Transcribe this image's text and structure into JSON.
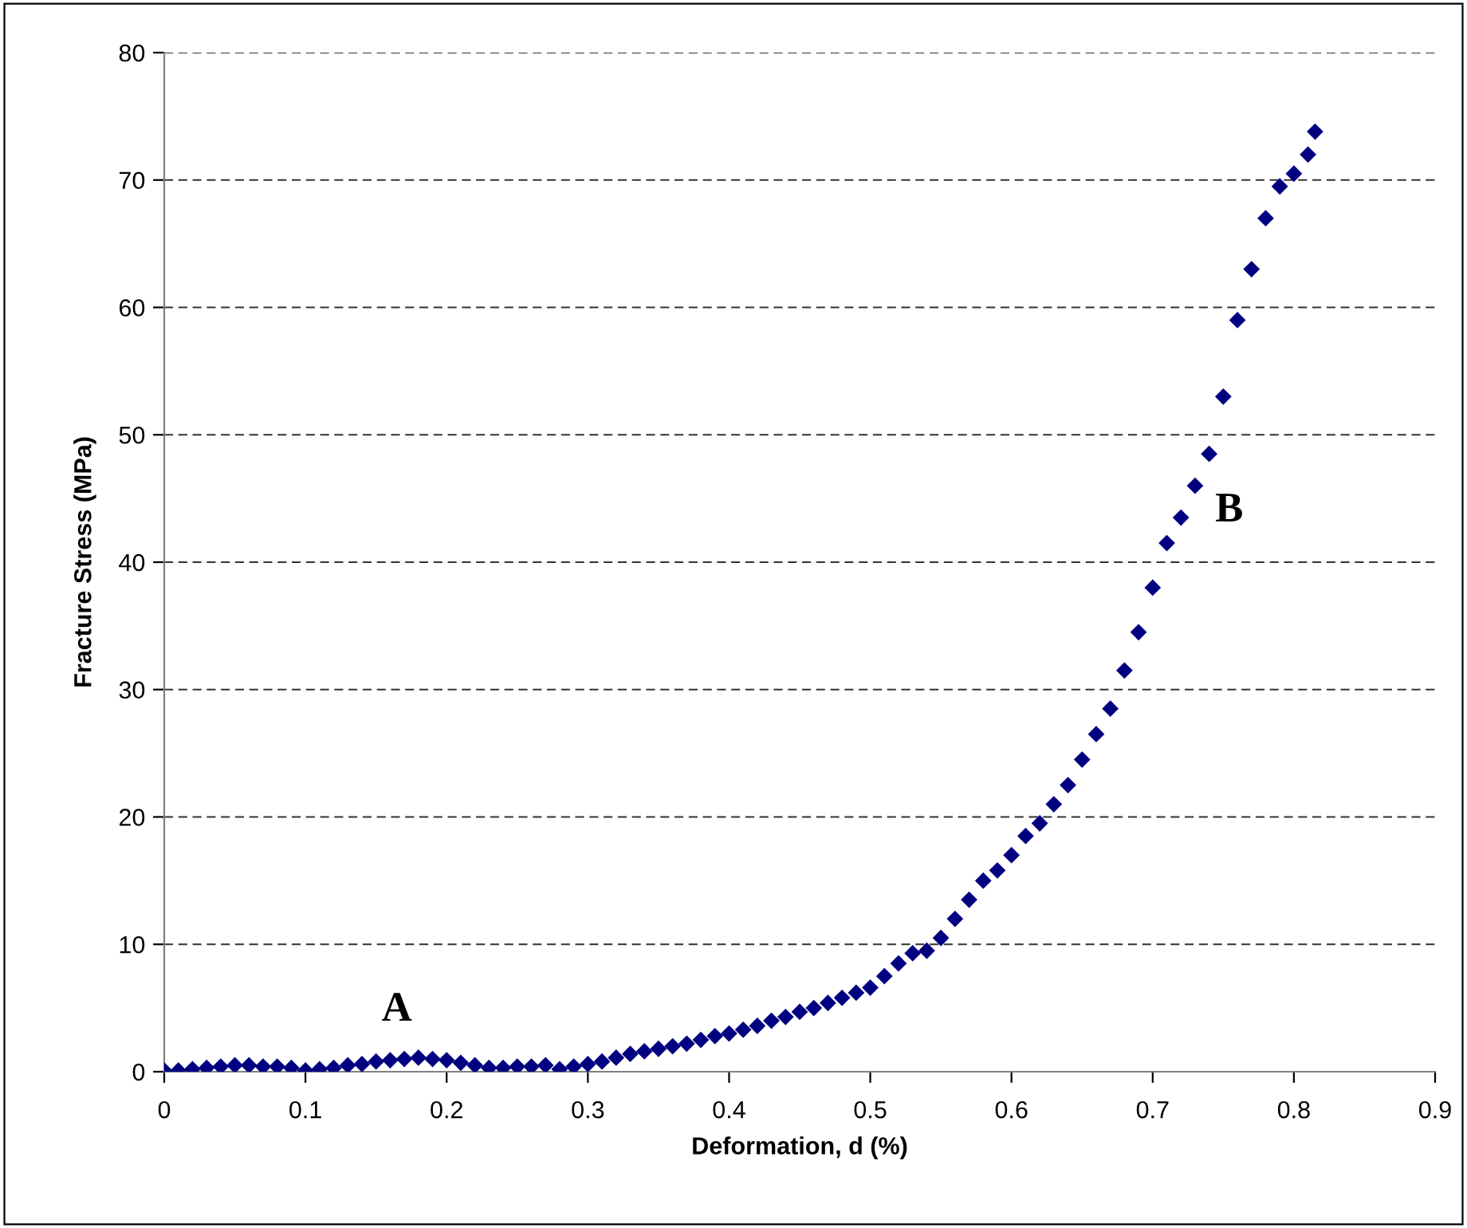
{
  "chart_data": {
    "type": "scatter",
    "xlabel": "Deformation, d (%)",
    "ylabel": "Fracture Stress (MPa)",
    "xlim": [
      0,
      0.9
    ],
    "xticks": [
      0,
      0.1,
      0.2,
      0.3,
      0.4,
      0.5,
      0.6,
      0.7,
      0.8,
      0.9
    ],
    "ylim": [
      0,
      80
    ],
    "yticks": [
      0,
      10,
      20,
      30,
      40,
      50,
      60,
      70,
      80
    ],
    "grid": "y",
    "marker": "diamond",
    "annotations": [
      "A",
      "B"
    ],
    "series": [
      {
        "color": "#000080",
        "x": [
          0,
          0.01,
          0.02,
          0.03,
          0.04,
          0.05,
          0.06,
          0.07,
          0.08,
          0.09,
          0.1,
          0.11,
          0.12,
          0.13,
          0.14,
          0.15,
          0.16,
          0.17,
          0.18,
          0.19,
          0.2,
          0.21,
          0.22,
          0.23,
          0.24,
          0.25,
          0.26,
          0.27,
          0.28,
          0.29,
          0.3,
          0.31,
          0.32,
          0.33,
          0.34,
          0.35,
          0.36,
          0.37,
          0.38,
          0.39,
          0.4,
          0.41,
          0.42,
          0.43,
          0.44,
          0.45,
          0.46,
          0.47,
          0.48,
          0.49,
          0.5,
          0.51,
          0.52,
          0.53,
          0.54,
          0.55,
          0.56,
          0.57,
          0.58,
          0.59,
          0.6,
          0.61,
          0.62,
          0.63,
          0.64,
          0.65,
          0.66,
          0.67,
          0.68,
          0.69,
          0.7,
          0.71,
          0.72,
          0.73,
          0.74,
          0.75,
          0.76,
          0.77,
          0.78,
          0.79,
          0.8,
          0.81,
          0.815
        ],
        "values": [
          0.1,
          0.1,
          0.2,
          0.3,
          0.4,
          0.5,
          0.5,
          0.4,
          0.4,
          0.3,
          0.1,
          0.2,
          0.3,
          0.5,
          0.6,
          0.8,
          0.9,
          1.0,
          1.1,
          1.0,
          0.9,
          0.7,
          0.5,
          0.3,
          0.3,
          0.4,
          0.4,
          0.5,
          0.2,
          0.4,
          0.6,
          0.8,
          1.1,
          1.4,
          1.6,
          1.8,
          2.0,
          2.2,
          2.5,
          2.8,
          3.0,
          3.3,
          3.6,
          4.0,
          4.3,
          4.7,
          5.0,
          5.4,
          5.8,
          6.2,
          6.6,
          7.5,
          8.5,
          9.3,
          9.5,
          10.5,
          12.0,
          13.5,
          15.0,
          15.8,
          17.0,
          18.5,
          19.5,
          21.0,
          22.5,
          24.5,
          26.5,
          28.5,
          31.5,
          34.5,
          38.0,
          41.5,
          43.5,
          46.0,
          48.5,
          53.0,
          59.0,
          63.0,
          67.0,
          69.5,
          70.5,
          72.0,
          73.8
        ]
      }
    ]
  }
}
